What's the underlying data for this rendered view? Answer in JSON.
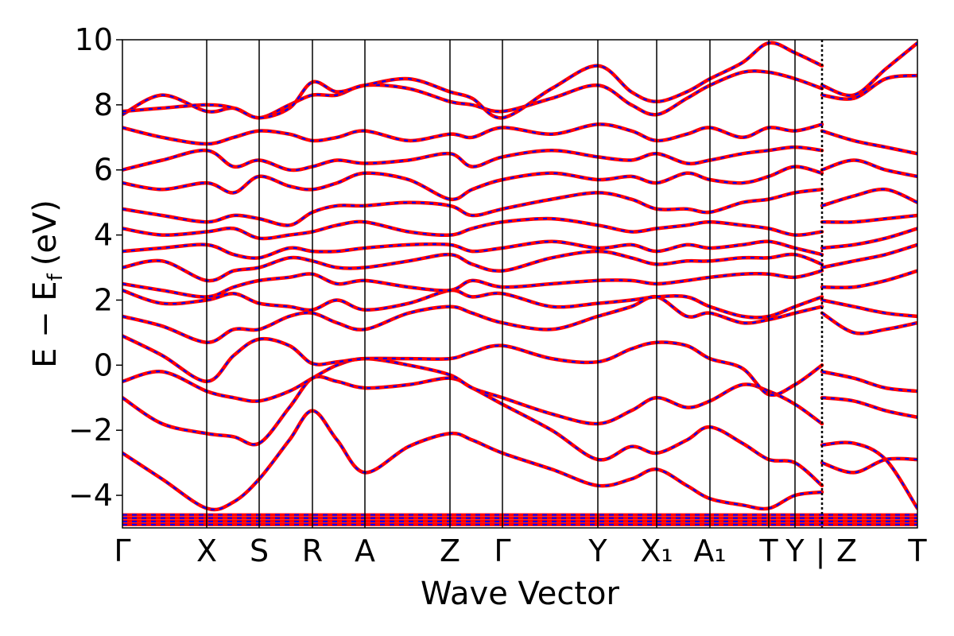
{
  "chart_data": {
    "type": "line",
    "title": "",
    "xlabel": "Wave Vector",
    "ylabel": "E − E_f (eV)",
    "ylabel_parts": {
      "main": "E − E",
      "sub": "f",
      "unit": "(eV)"
    },
    "ylim": [
      -5,
      10
    ],
    "yticks": [
      10,
      8,
      6,
      4,
      2,
      0,
      -2,
      -4
    ],
    "ytick_labels": [
      "10",
      "8",
      "6",
      "4",
      "2",
      "0",
      "−2",
      "−4"
    ],
    "grid": false,
    "legend": "none",
    "kpath": [
      {
        "label": "Γ",
        "x": 0.0
      },
      {
        "label": "X",
        "x": 0.106
      },
      {
        "label": "S",
        "x": 0.172
      },
      {
        "label": "R",
        "x": 0.239
      },
      {
        "label": "A",
        "x": 0.305
      },
      {
        "label": "Z",
        "x": 0.412
      },
      {
        "label": "Γ",
        "x": 0.478
      },
      {
        "label": "Y",
        "x": 0.598
      },
      {
        "label": "X₁",
        "x": 0.672
      },
      {
        "label": "A₁",
        "x": 0.739
      },
      {
        "label": "T",
        "x": 0.813
      },
      {
        "label": "Y",
        "x": 0.846
      },
      {
        "label": "Z",
        "x": 0.88
      },
      {
        "label": "T",
        "x": 1.0
      }
    ],
    "kpath_tick_labels": [
      {
        "text": "Γ",
        "x": 0.0
      },
      {
        "text": "X",
        "x": 0.106
      },
      {
        "text": "S",
        "x": 0.172
      },
      {
        "text": "R",
        "x": 0.239
      },
      {
        "text": "A",
        "x": 0.305
      },
      {
        "text": "Z",
        "x": 0.412
      },
      {
        "text": "Γ",
        "x": 0.478
      },
      {
        "text": "Y",
        "x": 0.598
      },
      {
        "text": "X₁",
        "x": 0.672
      },
      {
        "text": "A₁",
        "x": 0.739
      },
      {
        "text": "T",
        "x": 0.813
      },
      {
        "text": "Y",
        "x": 0.846
      },
      {
        "text": "|",
        "x": 0.878
      },
      {
        "text": "Z",
        "x": 0.911
      },
      {
        "text": "T",
        "x": 1.0
      }
    ],
    "path_break_x": 0.88,
    "colors": {
      "overlay": "#0000ff",
      "band": "#ff0000",
      "axis": "#000000"
    },
    "series": [
      {
        "x": [
          0.0,
          0.05,
          0.106,
          0.14,
          0.172,
          0.21,
          0.239,
          0.27,
          0.305,
          0.36,
          0.412,
          0.44,
          0.478,
          0.54,
          0.598,
          0.64,
          0.672,
          0.71,
          0.739,
          0.78,
          0.813,
          0.846,
          0.88
        ],
        "y": [
          -2.7,
          -3.5,
          -4.4,
          -4.2,
          -3.5,
          -2.3,
          -1.4,
          -2.3,
          -3.3,
          -2.5,
          -2.1,
          -2.3,
          -2.7,
          -3.2,
          -3.7,
          -3.5,
          -3.2,
          -3.7,
          -4.1,
          -4.3,
          -4.4,
          -4.0,
          -3.9
        ]
      },
      {
        "x": [
          0.0,
          0.05,
          0.106,
          0.14,
          0.172,
          0.21,
          0.239,
          0.27,
          0.305,
          0.36,
          0.412,
          0.44,
          0.478,
          0.54,
          0.598,
          0.64,
          0.672,
          0.71,
          0.739,
          0.78,
          0.813,
          0.846,
          0.88
        ],
        "y": [
          -1.0,
          -1.8,
          -2.1,
          -2.2,
          -2.4,
          -1.3,
          -0.4,
          -0.5,
          -0.7,
          -0.6,
          -0.4,
          -0.7,
          -1.2,
          -2.0,
          -2.9,
          -2.5,
          -2.7,
          -2.3,
          -1.9,
          -2.4,
          -2.9,
          -3.0,
          -3.7
        ]
      },
      {
        "x": [
          0.0,
          0.05,
          0.106,
          0.14,
          0.172,
          0.21,
          0.239,
          0.27,
          0.305,
          0.36,
          0.412,
          0.44,
          0.478,
          0.54,
          0.598,
          0.64,
          0.672,
          0.71,
          0.739,
          0.78,
          0.813,
          0.846,
          0.88
        ],
        "y": [
          -0.5,
          -0.2,
          -0.8,
          -1.0,
          -1.1,
          -0.8,
          -0.4,
          0.0,
          0.2,
          0.0,
          -0.3,
          -0.7,
          -1.0,
          -1.5,
          -1.8,
          -1.4,
          -1.0,
          -1.3,
          -1.1,
          -0.6,
          -0.8,
          -1.2,
          -1.8
        ]
      },
      {
        "x": [
          0.0,
          0.05,
          0.106,
          0.14,
          0.172,
          0.21,
          0.239,
          0.27,
          0.305,
          0.36,
          0.412,
          0.44,
          0.478,
          0.54,
          0.598,
          0.64,
          0.672,
          0.71,
          0.739,
          0.78,
          0.813,
          0.846,
          0.88
        ],
        "y": [
          0.9,
          0.3,
          -0.5,
          0.3,
          0.8,
          0.6,
          0.05,
          0.1,
          0.2,
          0.2,
          0.2,
          0.4,
          0.6,
          0.2,
          0.1,
          0.5,
          0.7,
          0.6,
          0.2,
          -0.1,
          -0.9,
          -0.6,
          0.0
        ]
      },
      {
        "x": [
          0.0,
          0.05,
          0.106,
          0.14,
          0.172,
          0.21,
          0.239,
          0.27,
          0.305,
          0.36,
          0.412,
          0.44,
          0.478,
          0.54,
          0.598,
          0.64,
          0.672,
          0.71,
          0.739,
          0.78,
          0.813,
          0.846,
          0.88
        ],
        "y": [
          1.5,
          1.2,
          0.7,
          1.1,
          1.1,
          1.5,
          1.6,
          1.3,
          1.1,
          1.6,
          1.8,
          1.6,
          1.3,
          1.1,
          1.5,
          1.8,
          2.1,
          1.5,
          1.6,
          1.3,
          1.4,
          1.6,
          1.8
        ]
      },
      {
        "x": [
          0.0,
          0.05,
          0.106,
          0.14,
          0.172,
          0.21,
          0.239,
          0.27,
          0.305,
          0.36,
          0.412,
          0.44,
          0.478,
          0.54,
          0.598,
          0.64,
          0.672,
          0.71,
          0.739,
          0.78,
          0.813,
          0.846,
          0.88
        ],
        "y": [
          2.3,
          1.9,
          2.0,
          2.2,
          1.9,
          1.8,
          1.7,
          2.0,
          1.7,
          1.9,
          2.3,
          2.1,
          2.2,
          1.8,
          1.9,
          2.0,
          2.1,
          2.1,
          1.8,
          1.5,
          1.5,
          1.8,
          2.1
        ]
      },
      {
        "x": [
          0.0,
          0.05,
          0.106,
          0.14,
          0.172,
          0.21,
          0.239,
          0.27,
          0.305,
          0.36,
          0.412,
          0.44,
          0.478,
          0.54,
          0.598,
          0.64,
          0.672,
          0.71,
          0.739,
          0.78,
          0.813,
          0.846,
          0.88
        ],
        "y": [
          2.5,
          2.3,
          2.1,
          2.4,
          2.6,
          2.7,
          2.8,
          2.5,
          2.6,
          2.4,
          2.3,
          2.6,
          2.4,
          2.5,
          2.6,
          2.6,
          2.5,
          2.6,
          2.7,
          2.8,
          2.8,
          2.7,
          2.9
        ]
      },
      {
        "x": [
          0.0,
          0.05,
          0.106,
          0.14,
          0.172,
          0.21,
          0.239,
          0.27,
          0.305,
          0.36,
          0.412,
          0.44,
          0.478,
          0.54,
          0.598,
          0.64,
          0.672,
          0.71,
          0.739,
          0.78,
          0.813,
          0.846,
          0.88
        ],
        "y": [
          3.0,
          3.2,
          2.6,
          2.9,
          3.0,
          3.3,
          3.2,
          3.0,
          3.0,
          3.2,
          3.4,
          3.1,
          2.9,
          3.3,
          3.5,
          3.3,
          3.1,
          3.2,
          3.2,
          3.3,
          3.3,
          3.4,
          3.1
        ]
      },
      {
        "x": [
          0.0,
          0.05,
          0.106,
          0.14,
          0.172,
          0.21,
          0.239,
          0.27,
          0.305,
          0.36,
          0.412,
          0.44,
          0.478,
          0.54,
          0.598,
          0.64,
          0.672,
          0.71,
          0.739,
          0.78,
          0.813,
          0.846,
          0.88
        ],
        "y": [
          3.5,
          3.6,
          3.7,
          3.4,
          3.3,
          3.6,
          3.5,
          3.5,
          3.6,
          3.7,
          3.7,
          3.5,
          3.6,
          3.8,
          3.6,
          3.7,
          3.5,
          3.7,
          3.6,
          3.7,
          3.8,
          3.6,
          3.4
        ]
      },
      {
        "x": [
          0.0,
          0.05,
          0.106,
          0.14,
          0.172,
          0.21,
          0.239,
          0.27,
          0.305,
          0.36,
          0.412,
          0.44,
          0.478,
          0.54,
          0.598,
          0.64,
          0.672,
          0.71,
          0.739,
          0.78,
          0.813,
          0.846,
          0.88
        ],
        "y": [
          4.2,
          4.0,
          4.1,
          4.2,
          3.9,
          4.0,
          4.1,
          4.3,
          4.4,
          4.1,
          4.0,
          4.2,
          4.4,
          4.5,
          4.3,
          4.1,
          4.2,
          4.3,
          4.4,
          4.3,
          4.2,
          4.0,
          4.1
        ]
      },
      {
        "x": [
          0.0,
          0.05,
          0.106,
          0.14,
          0.172,
          0.21,
          0.239,
          0.27,
          0.305,
          0.36,
          0.412,
          0.44,
          0.478,
          0.54,
          0.598,
          0.64,
          0.672,
          0.71,
          0.739,
          0.78,
          0.813,
          0.846,
          0.88
        ],
        "y": [
          4.8,
          4.6,
          4.4,
          4.6,
          4.5,
          4.3,
          4.7,
          4.9,
          4.9,
          5.0,
          4.9,
          4.6,
          4.8,
          5.1,
          5.3,
          5.1,
          4.8,
          4.8,
          4.7,
          5.0,
          5.1,
          5.3,
          5.4
        ]
      },
      {
        "x": [
          0.0,
          0.05,
          0.106,
          0.14,
          0.172,
          0.21,
          0.239,
          0.27,
          0.305,
          0.36,
          0.412,
          0.44,
          0.478,
          0.54,
          0.598,
          0.64,
          0.672,
          0.71,
          0.739,
          0.78,
          0.813,
          0.846,
          0.88
        ],
        "y": [
          5.6,
          5.4,
          5.6,
          5.3,
          5.8,
          5.5,
          5.4,
          5.6,
          5.9,
          5.7,
          5.1,
          5.4,
          5.7,
          5.9,
          5.7,
          5.8,
          5.6,
          5.9,
          5.7,
          5.6,
          5.8,
          6.1,
          5.9
        ]
      },
      {
        "x": [
          0.0,
          0.05,
          0.106,
          0.14,
          0.172,
          0.21,
          0.239,
          0.27,
          0.305,
          0.36,
          0.412,
          0.44,
          0.478,
          0.54,
          0.598,
          0.64,
          0.672,
          0.71,
          0.739,
          0.78,
          0.813,
          0.846,
          0.88
        ],
        "y": [
          6.0,
          6.3,
          6.6,
          6.1,
          6.3,
          6.0,
          6.1,
          6.3,
          6.2,
          6.3,
          6.5,
          6.1,
          6.4,
          6.6,
          6.4,
          6.3,
          6.5,
          6.2,
          6.3,
          6.5,
          6.6,
          6.7,
          6.6
        ]
      },
      {
        "x": [
          0.0,
          0.05,
          0.106,
          0.14,
          0.172,
          0.21,
          0.239,
          0.27,
          0.305,
          0.36,
          0.412,
          0.44,
          0.478,
          0.54,
          0.598,
          0.64,
          0.672,
          0.71,
          0.739,
          0.78,
          0.813,
          0.846,
          0.88
        ],
        "y": [
          7.3,
          7.0,
          6.8,
          7.0,
          7.2,
          7.1,
          6.9,
          7.0,
          7.2,
          6.9,
          7.1,
          7.0,
          7.3,
          7.1,
          7.4,
          7.2,
          6.9,
          7.1,
          7.3,
          7.0,
          7.3,
          7.2,
          7.4
        ]
      },
      {
        "x": [
          0.0,
          0.05,
          0.106,
          0.14,
          0.172,
          0.21,
          0.239,
          0.27,
          0.305,
          0.36,
          0.412,
          0.44,
          0.478,
          0.54,
          0.598,
          0.64,
          0.672,
          0.71,
          0.739,
          0.78,
          0.813,
          0.846,
          0.88
        ],
        "y": [
          7.7,
          8.3,
          7.8,
          7.9,
          7.6,
          8.0,
          8.3,
          8.3,
          8.6,
          8.5,
          8.1,
          8.0,
          7.8,
          8.2,
          8.6,
          8.0,
          7.7,
          8.2,
          8.6,
          9.0,
          9.0,
          8.8,
          8.5
        ]
      },
      {
        "x": [
          0.0,
          0.05,
          0.106,
          0.14,
          0.172,
          0.21,
          0.239,
          0.27,
          0.305,
          0.36,
          0.412,
          0.44,
          0.478,
          0.54,
          0.598,
          0.64,
          0.672,
          0.71,
          0.739,
          0.78,
          0.813,
          0.846,
          0.88
        ],
        "y": [
          7.8,
          7.9,
          8.0,
          7.9,
          7.6,
          7.9,
          8.7,
          8.4,
          8.6,
          8.8,
          8.4,
          8.2,
          7.6,
          8.5,
          9.2,
          8.4,
          8.1,
          8.4,
          8.8,
          9.3,
          9.9,
          9.6,
          9.2
        ]
      },
      {
        "x": [
          0.88,
          0.92,
          0.96,
          1.0
        ],
        "y": [
          -3.0,
          -3.3,
          -2.9,
          -2.9
        ]
      },
      {
        "x": [
          0.88,
          0.92,
          0.96,
          1.0
        ],
        "y": [
          -2.45,
          -2.4,
          -2.9,
          -4.4
        ]
      },
      {
        "x": [
          0.88,
          0.92,
          0.96,
          1.0
        ],
        "y": [
          -1.0,
          -1.1,
          -1.4,
          -1.6
        ]
      },
      {
        "x": [
          0.88,
          0.92,
          0.96,
          1.0
        ],
        "y": [
          -0.2,
          -0.4,
          -0.7,
          -0.8
        ]
      },
      {
        "x": [
          0.88,
          0.92,
          0.96,
          1.0
        ],
        "y": [
          1.6,
          1.0,
          1.1,
          1.3
        ]
      },
      {
        "x": [
          0.88,
          0.92,
          0.96,
          1.0
        ],
        "y": [
          2.0,
          1.8,
          1.6,
          1.5
        ]
      },
      {
        "x": [
          0.88,
          0.92,
          0.96,
          1.0
        ],
        "y": [
          2.4,
          2.4,
          2.6,
          2.9
        ]
      },
      {
        "x": [
          0.88,
          0.92,
          0.96,
          1.0
        ],
        "y": [
          3.0,
          3.2,
          3.4,
          3.7
        ]
      },
      {
        "x": [
          0.88,
          0.92,
          0.96,
          1.0
        ],
        "y": [
          3.6,
          3.7,
          3.9,
          4.2
        ]
      },
      {
        "x": [
          0.88,
          0.92,
          0.96,
          1.0
        ],
        "y": [
          4.4,
          4.4,
          4.5,
          4.6
        ]
      },
      {
        "x": [
          0.88,
          0.92,
          0.96,
          1.0
        ],
        "y": [
          4.9,
          5.2,
          5.4,
          5.0
        ]
      },
      {
        "x": [
          0.88,
          0.92,
          0.96,
          1.0
        ],
        "y": [
          6.0,
          6.3,
          6.0,
          5.8
        ]
      },
      {
        "x": [
          0.88,
          0.92,
          0.96,
          1.0
        ],
        "y": [
          7.2,
          6.9,
          6.7,
          6.5
        ]
      },
      {
        "x": [
          0.88,
          0.92,
          0.96,
          1.0
        ],
        "y": [
          8.3,
          8.2,
          8.8,
          8.9
        ]
      },
      {
        "x": [
          0.88,
          0.92,
          0.96,
          1.0
        ],
        "y": [
          8.6,
          8.3,
          9.1,
          9.9
        ]
      }
    ],
    "flat_band_y": [
      -4.6,
      -4.7,
      -4.8,
      -4.9
    ]
  }
}
